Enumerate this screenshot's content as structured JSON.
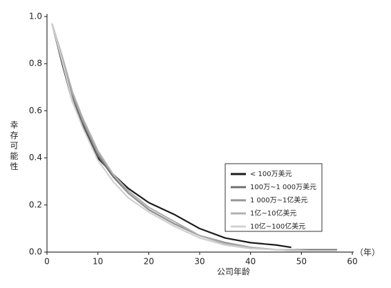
{
  "chart_data": {
    "type": "line",
    "x_label": "公司年龄",
    "x_unit": "（年）",
    "y_label": "幸存可能性",
    "x": [
      1,
      3,
      5,
      7,
      10,
      13,
      16,
      20,
      25,
      30,
      35,
      40,
      45,
      48,
      52,
      57
    ],
    "series": [
      {
        "name": "< 100万美元",
        "color": "#1a1a1a",
        "width": 2.2,
        "values": [
          0.97,
          0.8,
          0.64,
          0.54,
          0.4,
          0.33,
          0.27,
          0.21,
          0.16,
          0.1,
          0.06,
          0.04,
          0.03,
          0.02,
          null,
          null
        ]
      },
      {
        "name": "100万~1 000万美元",
        "color": "#707070",
        "width": 2.2,
        "values": [
          0.97,
          0.81,
          0.66,
          0.55,
          0.41,
          0.32,
          0.25,
          0.18,
          0.12,
          0.07,
          0.04,
          0.02,
          0.01,
          0.01,
          0.01,
          0.01
        ]
      },
      {
        "name": "1 000万~1亿美元",
        "color": "#959595",
        "width": 2.2,
        "values": [
          0.97,
          0.82,
          0.67,
          0.56,
          0.42,
          0.33,
          0.25,
          0.18,
          0.12,
          0.07,
          0.04,
          0.02,
          0.01,
          0.01,
          0.005,
          0.005
        ]
      },
      {
        "name": "1亿~10亿美元",
        "color": "#b0b0b0",
        "width": 2.2,
        "values": [
          0.97,
          0.83,
          0.68,
          0.57,
          0.43,
          0.33,
          0.26,
          0.19,
          0.13,
          0.07,
          0.035,
          0.02,
          0.01,
          0.01,
          0.005,
          0.005
        ]
      },
      {
        "name": "10亿~100亿美元",
        "color": "#d0d0d0",
        "width": 2.2,
        "values": [
          0.97,
          0.81,
          0.64,
          0.53,
          0.39,
          0.3,
          0.23,
          0.17,
          0.11,
          0.06,
          0.03,
          0.015,
          0.01,
          0.005,
          0.005,
          0.005
        ]
      }
    ],
    "xlim": [
      0,
      60
    ],
    "xticks": [
      0,
      10,
      20,
      30,
      40,
      50,
      60
    ],
    "ylim": [
      0,
      1
    ],
    "yticks": [
      {
        "value": 0,
        "label": "0.0"
      },
      0.2,
      0.4,
      0.6,
      0.8,
      {
        "value": 1,
        "label": "1.0"
      }
    ],
    "grid": false,
    "legend": "lower-right"
  }
}
